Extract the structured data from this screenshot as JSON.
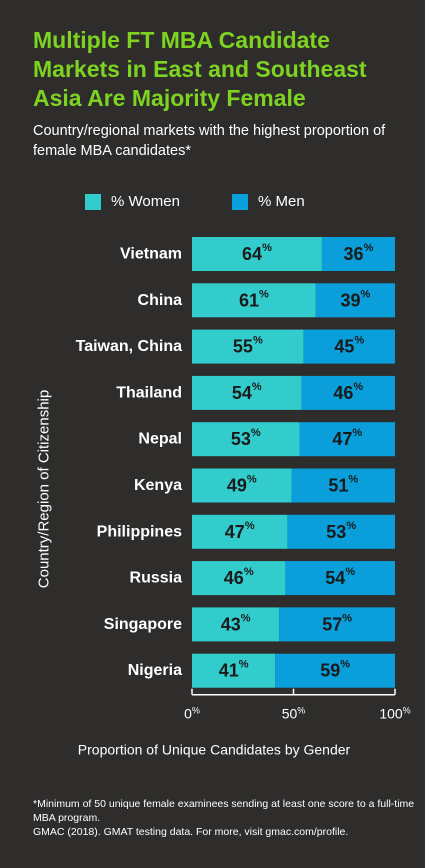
{
  "title": "Multiple FT MBA Candidate Markets in East and Southeast Asia Are Majority Female",
  "subtitle": "Country/regional markets with the highest proportion of female MBA candidates*",
  "footnote_1": "*Minimum of 50 unique female examinees sending at least one score to a full-time MBA program.",
  "footnote_2": "GMAC (2018). GMAT testing data. For more, visit gmac.com/profile.",
  "colors": {
    "background": "#2e2d2c",
    "title": "#7ed321",
    "women": "#33cccc",
    "men": "#0a9fdb",
    "text": "#ffffff",
    "bar_text": "#1a1a1a"
  },
  "chart_data": {
    "type": "bar",
    "orientation": "horizontal",
    "stacked": true,
    "categories": [
      "Vietnam",
      "China",
      "Taiwan, China",
      "Thailand",
      "Nepal",
      "Kenya",
      "Philippines",
      "Russia",
      "Singapore",
      "Nigeria"
    ],
    "series": [
      {
        "name": "% Women",
        "values": [
          64,
          61,
          55,
          54,
          53,
          49,
          47,
          46,
          43,
          41
        ]
      },
      {
        "name": "% Men",
        "values": [
          36,
          39,
          45,
          46,
          47,
          51,
          53,
          54,
          57,
          59
        ]
      }
    ],
    "value_suffix": "%",
    "xlabel": "Proportion of Unique Candidates by Gender",
    "ylabel": "Country/Region of Citizenship",
    "xlim": [
      0,
      100
    ],
    "xticks": [
      0,
      50,
      100
    ],
    "legend_position": "top",
    "grid": false
  }
}
